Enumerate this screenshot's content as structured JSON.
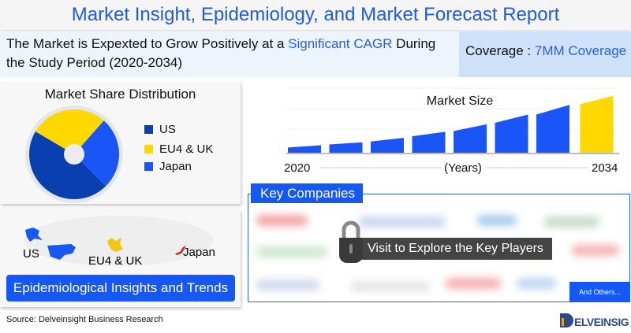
{
  "header": {
    "title": "Market Insight, Epidemiology, and Market Forecast Report"
  },
  "growth": {
    "text_before": "The Market is Expexted to Grow Positively at a ",
    "highlight": "Significant CAGR",
    "text_after": " During the Study Period (2020-2034)"
  },
  "coverage": {
    "label": "Coverage : ",
    "value": "7MM Coverage"
  },
  "colors": {
    "brand_blue": "#1558f5",
    "us": "#0a3fb0",
    "eu4_uk": "#ffd800",
    "japan": "#1a55f8",
    "forecast": "#ffd800"
  },
  "chart_data": [
    {
      "type": "pie",
      "title": "Market Share Distribution",
      "categories": [
        "US",
        "EU4 & UK",
        "Japan"
      ],
      "values": [
        46,
        28,
        26
      ],
      "colors": [
        "#0a3fb0",
        "#ffd800",
        "#1a55f8"
      ],
      "legend": "right"
    },
    {
      "type": "bar",
      "title": "Market Size",
      "xlabel": "(Years)",
      "x_tick_labels": [
        "2020",
        "2034"
      ],
      "bar_start": [
        7,
        11,
        15,
        22,
        29,
        40,
        51,
        65
      ],
      "bar_end": [
        10,
        14,
        20,
        28,
        38,
        51,
        64,
        76
      ],
      "ylim": [
        0,
        80
      ],
      "highlight_last": true,
      "grid": true
    }
  ],
  "map": {
    "labels": [
      "US",
      "EU4 & UK",
      "Japan"
    ],
    "banner": "Epidemiological Insights and Trends"
  },
  "source": "Source: Delveinsight Business Research",
  "key_companies": {
    "title": "Key Companies",
    "cta": "Visit to Explore the Key Players",
    "others": "And Others...",
    "lock_icon": "padlock"
  },
  "logo": "DELVEINSIGHT"
}
